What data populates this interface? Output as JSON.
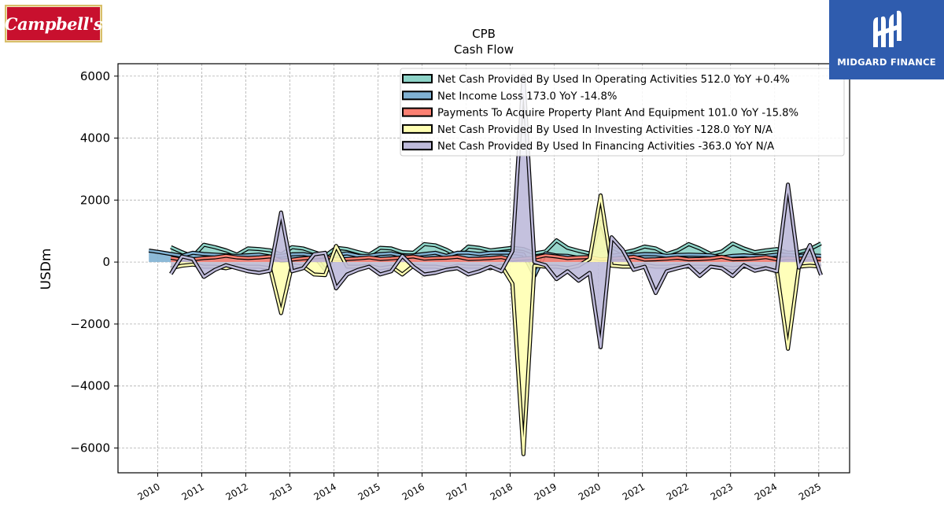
{
  "logos": {
    "left_text": "Campbell's",
    "right_text": "MIDGARD FINANCE",
    "right_color": "#2f5cae",
    "left_color": "#c8102e"
  },
  "chart_data": {
    "type": "area",
    "title": "CPB",
    "subtitle": "Cash Flow",
    "ylabel": "USDm",
    "xlabel": "",
    "ylim": [
      -6800,
      6400
    ],
    "xlim": [
      2009.1,
      2025.7
    ],
    "yticks": [
      -6000,
      -4000,
      -2000,
      0,
      2000,
      4000,
      6000
    ],
    "ytick_labels": [
      "−6000",
      "−4000",
      "−2000",
      "0",
      "2000",
      "4000",
      "6000"
    ],
    "xticks": [
      2010,
      2011,
      2012,
      2013,
      2014,
      2015,
      2016,
      2017,
      2018,
      2019,
      2020,
      2021,
      2022,
      2023,
      2024,
      2025
    ],
    "xtick_labels": [
      "2010",
      "2011",
      "2012",
      "2013",
      "2014",
      "2015",
      "2016",
      "2017",
      "2018",
      "2019",
      "2020",
      "2021",
      "2022",
      "2023",
      "2024",
      "2025"
    ],
    "grid": true,
    "legend_position": "top-right",
    "series": [
      {
        "name": "Net Cash Provided By Used In Operating Activities",
        "legend": "Net Cash Provided By Used In Operating Activities  512.0 YoY +0.4%",
        "color": "#8dd3c7",
        "x": [
          2010.3,
          2010.55,
          2010.8,
          2011.05,
          2011.3,
          2011.55,
          2011.8,
          2012.05,
          2012.3,
          2012.55,
          2012.8,
          2013.05,
          2013.3,
          2013.55,
          2013.8,
          2014.05,
          2014.3,
          2014.55,
          2014.8,
          2015.05,
          2015.3,
          2015.55,
          2015.8,
          2016.05,
          2016.3,
          2016.55,
          2016.8,
          2017.05,
          2017.3,
          2017.55,
          2017.8,
          2018.05,
          2018.3,
          2018.55,
          2018.8,
          2019.05,
          2019.3,
          2019.55,
          2019.8,
          2020.05,
          2020.3,
          2020.55,
          2020.8,
          2021.05,
          2021.3,
          2021.55,
          2021.8,
          2022.05,
          2022.3,
          2022.55,
          2022.8,
          2023.05,
          2023.3,
          2023.55,
          2023.8,
          2024.05,
          2024.3,
          2024.55,
          2024.8,
          2025.05
        ],
        "values": [
          480,
          320,
          180,
          560,
          480,
          380,
          240,
          440,
          420,
          380,
          240,
          480,
          440,
          320,
          200,
          460,
          420,
          320,
          240,
          460,
          440,
          320,
          300,
          580,
          540,
          400,
          200,
          500,
          460,
          380,
          420,
          460,
          420,
          280,
          340,
          700,
          460,
          360,
          280,
          380,
          480,
          300,
          380,
          500,
          440,
          260,
          380,
          580,
          440,
          260,
          340,
          600,
          440,
          320,
          380,
          420,
          300,
          320,
          420,
          600
        ]
      },
      {
        "name": "Net Income Loss",
        "legend": "Net Income Loss  173.0 YoY -14.8%",
        "color": "#80b1d3",
        "x": [
          2009.8,
          2010.05,
          2010.3,
          2010.55,
          2010.8,
          2011.05,
          2011.3,
          2011.55,
          2011.8,
          2012.05,
          2012.3,
          2012.55,
          2012.8,
          2013.05,
          2013.3,
          2013.55,
          2013.8,
          2014.05,
          2014.3,
          2014.55,
          2014.8,
          2015.05,
          2015.3,
          2015.55,
          2015.8,
          2016.05,
          2016.3,
          2016.55,
          2016.8,
          2017.05,
          2017.3,
          2017.55,
          2017.8,
          2018.05,
          2018.3,
          2018.55,
          2018.8,
          2019.05,
          2019.3,
          2019.55,
          2019.8,
          2020.05,
          2020.3,
          2020.55,
          2020.8,
          2021.05,
          2021.3,
          2021.55,
          2021.8,
          2022.05,
          2022.3,
          2022.55,
          2022.8,
          2023.05,
          2023.3,
          2023.55,
          2023.8,
          2024.05,
          2024.3,
          2024.55,
          2024.8,
          2025.05
        ],
        "values": [
          370,
          320,
          260,
          200,
          300,
          260,
          240,
          220,
          200,
          220,
          240,
          180,
          200,
          250,
          260,
          200,
          -250,
          240,
          280,
          200,
          200,
          260,
          280,
          200,
          220,
          260,
          300,
          200,
          300,
          300,
          260,
          300,
          300,
          300,
          250,
          -450,
          280,
          210,
          200,
          130,
          150,
          1300,
          200,
          250,
          230,
          260,
          250,
          200,
          230,
          240,
          230,
          220,
          150,
          200,
          220,
          190,
          200,
          240,
          230,
          200,
          220,
          200
        ]
      },
      {
        "name": "Payments To Acquire Property Plant And Equipment",
        "legend": "Payments To Acquire Property Plant And Equipment  101.0 YoY -15.8%",
        "color": "#fb8072",
        "x": [
          2010.3,
          2010.55,
          2010.8,
          2011.05,
          2011.3,
          2011.55,
          2011.8,
          2012.05,
          2012.3,
          2012.55,
          2012.8,
          2013.05,
          2013.3,
          2013.55,
          2013.8,
          2014.05,
          2014.3,
          2014.55,
          2014.8,
          2015.05,
          2015.3,
          2015.55,
          2015.8,
          2016.05,
          2016.3,
          2016.55,
          2016.8,
          2017.05,
          2017.3,
          2017.55,
          2017.8,
          2018.05,
          2018.3,
          2018.55,
          2018.8,
          2019.05,
          2019.3,
          2019.55,
          2019.8,
          2020.05,
          2020.3,
          2020.55,
          2020.8,
          2021.05,
          2021.3,
          2021.55,
          2021.8,
          2022.05,
          2022.3,
          2022.55,
          2022.8,
          2023.05,
          2023.3,
          2023.55,
          2023.8,
          2024.05,
          2024.3,
          2024.55,
          2024.8,
          2025.05
        ],
        "values": [
          140,
          80,
          90,
          130,
          150,
          200,
          150,
          130,
          150,
          180,
          50,
          80,
          120,
          150,
          180,
          90,
          100,
          120,
          150,
          100,
          120,
          150,
          180,
          110,
          130,
          140,
          170,
          100,
          110,
          130,
          160,
          80,
          110,
          140,
          220,
          180,
          130,
          150,
          160,
          90,
          110,
          130,
          170,
          80,
          90,
          110,
          140,
          90,
          100,
          120,
          170,
          90,
          100,
          120,
          160,
          90,
          130,
          110,
          120,
          100
        ]
      },
      {
        "name": "Net Cash Provided By Used In Investing Activities",
        "legend": "Net Cash Provided By Used In Investing Activities  -128.0 YoY N/A",
        "color": "#ffffb3",
        "x": [
          2010.3,
          2010.55,
          2010.8,
          2011.05,
          2011.3,
          2011.55,
          2011.8,
          2012.05,
          2012.3,
          2012.55,
          2012.8,
          2013.05,
          2013.3,
          2013.55,
          2013.8,
          2014.05,
          2014.3,
          2014.55,
          2014.8,
          2015.05,
          2015.3,
          2015.55,
          2015.8,
          2016.05,
          2016.3,
          2016.55,
          2016.8,
          2017.05,
          2017.3,
          2017.55,
          2017.8,
          2018.05,
          2018.3,
          2018.55,
          2018.8,
          2019.05,
          2019.3,
          2019.55,
          2019.8,
          2020.05,
          2020.3,
          2020.55,
          2020.8,
          2021.05,
          2021.3,
          2021.55,
          2021.8,
          2022.05,
          2022.3,
          2022.55,
          2022.8,
          2023.05,
          2023.3,
          2023.55,
          2023.8,
          2024.05,
          2024.3,
          2024.55,
          2024.8,
          2025.05
        ],
        "values": [
          -200,
          -120,
          -80,
          -150,
          -150,
          -200,
          -120,
          -150,
          -150,
          -200,
          -1650,
          -100,
          -150,
          -400,
          -420,
          520,
          -150,
          -150,
          -120,
          -200,
          -150,
          -400,
          -120,
          -150,
          -150,
          -200,
          -120,
          -150,
          -150,
          -200,
          -120,
          -700,
          -6200,
          -120,
          -150,
          -150,
          -200,
          -120,
          100,
          2150,
          -120,
          -150,
          -150,
          -100,
          -150,
          -150,
          -120,
          -150,
          -150,
          -150,
          -150,
          -200,
          -150,
          -150,
          -200,
          -300,
          -2800,
          -150,
          -120,
          -150
        ]
      },
      {
        "name": "Net Cash Provided By Used In Financing Activities",
        "legend": "Net Cash Provided By Used In Financing Activities  -363.0 YoY N/A",
        "color": "#bebada",
        "x": [
          2010.3,
          2010.55,
          2010.8,
          2011.05,
          2011.3,
          2011.55,
          2011.8,
          2012.05,
          2012.3,
          2012.55,
          2012.8,
          2013.05,
          2013.3,
          2013.55,
          2013.8,
          2014.05,
          2014.3,
          2014.55,
          2014.8,
          2015.05,
          2015.3,
          2015.55,
          2015.8,
          2016.05,
          2016.3,
          2016.55,
          2016.8,
          2017.05,
          2017.3,
          2017.55,
          2017.8,
          2018.05,
          2018.3,
          2018.55,
          2018.8,
          2019.05,
          2019.3,
          2019.55,
          2019.8,
          2020.05,
          2020.3,
          2020.55,
          2020.8,
          2021.05,
          2021.3,
          2021.55,
          2021.8,
          2022.05,
          2022.3,
          2022.55,
          2022.8,
          2023.05,
          2023.3,
          2023.55,
          2023.8,
          2024.05,
          2024.3,
          2024.55,
          2024.8,
          2025.05
        ],
        "values": [
          -380,
          180,
          100,
          -480,
          -250,
          -100,
          -200,
          -300,
          -350,
          -280,
          1600,
          -300,
          -200,
          250,
          300,
          -850,
          -400,
          -250,
          -150,
          -400,
          -300,
          200,
          -150,
          -400,
          -350,
          -250,
          -200,
          -400,
          -300,
          -150,
          -300,
          350,
          6000,
          0,
          -100,
          -550,
          -300,
          -600,
          -350,
          -2750,
          800,
          400,
          -250,
          -150,
          -1000,
          -300,
          -200,
          -120,
          -450,
          -150,
          -200,
          -450,
          -100,
          -280,
          -200,
          -300,
          2500,
          -180,
          550,
          -420
        ]
      }
    ]
  }
}
